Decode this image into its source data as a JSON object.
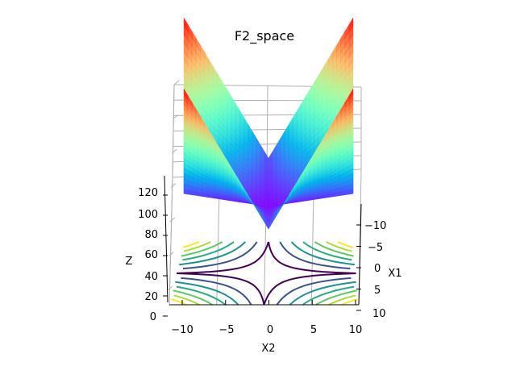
{
  "chart_data": {
    "type": "surface3d",
    "title": "F2_space",
    "xlabel": "X1",
    "ylabel": "X2",
    "zlabel": "Z",
    "x_ticks": [
      "−10",
      "−5",
      "0",
      "5",
      "10"
    ],
    "y_ticks": [
      "−10",
      "−5",
      "0",
      "5",
      "10"
    ],
    "z_ticks": [
      "0",
      "20",
      "40",
      "60",
      "80",
      "100",
      "120"
    ],
    "xlim": [
      -10,
      10
    ],
    "ylim": [
      -10,
      10
    ],
    "zlim": [
      0,
      120
    ],
    "grid": true,
    "colormap": "rainbow",
    "contour_colormap": "viridis",
    "surface_formula": "z = |x1|*|x2| + |x1| + |x2|"
  }
}
